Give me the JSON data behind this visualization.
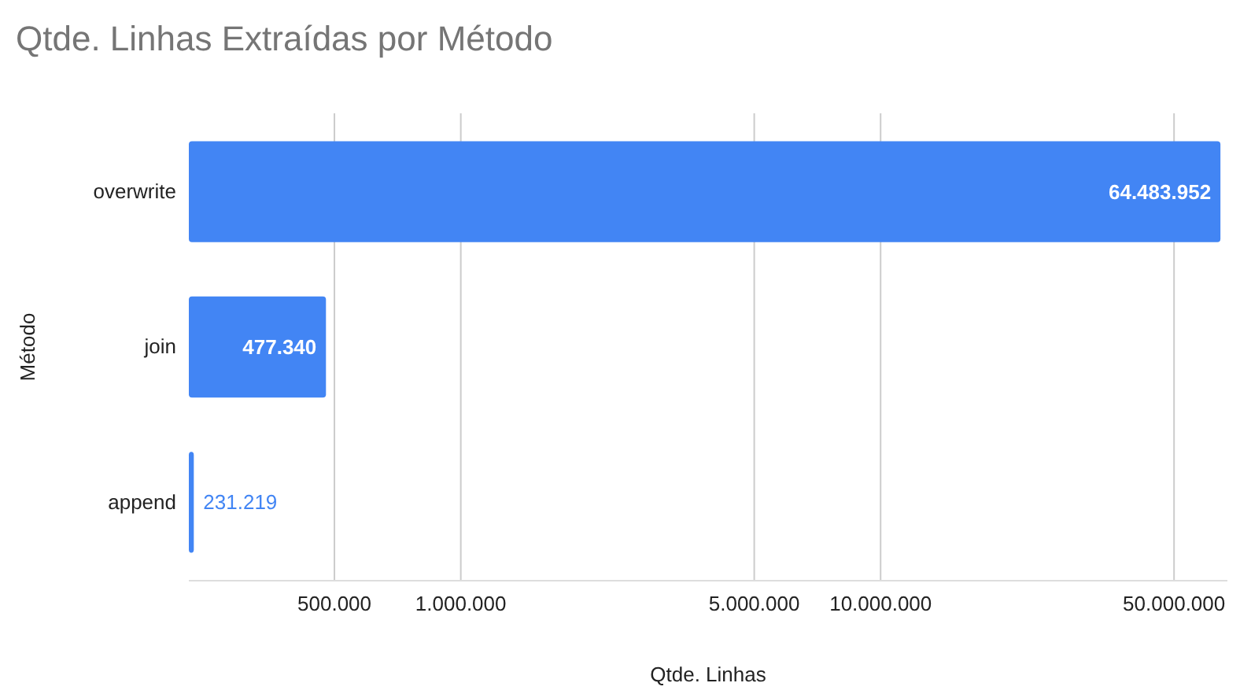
{
  "chart_data": {
    "type": "bar",
    "orientation": "horizontal",
    "title": "Qtde. Linhas Extraídas por Método",
    "xlabel": "Qtde. Linhas",
    "ylabel": "Método",
    "categories": [
      "overwrite",
      "join",
      "append"
    ],
    "values": [
      64483952,
      477340,
      231219
    ],
    "value_labels": [
      "64.483.952",
      "477.340",
      "231.219"
    ],
    "color": "#4285f4",
    "log": "x",
    "grid": "x",
    "xlim": [
      225000,
      67000000
    ],
    "xticks": [
      {
        "value": 500000,
        "label": "500.000"
      },
      {
        "value": 1000000,
        "label": "1.000.000"
      },
      {
        "value": 5000000,
        "label": "5.000.000"
      },
      {
        "value": 10000000,
        "label": "10.000.000"
      },
      {
        "value": 50000000,
        "label": "50.000.000"
      }
    ]
  }
}
